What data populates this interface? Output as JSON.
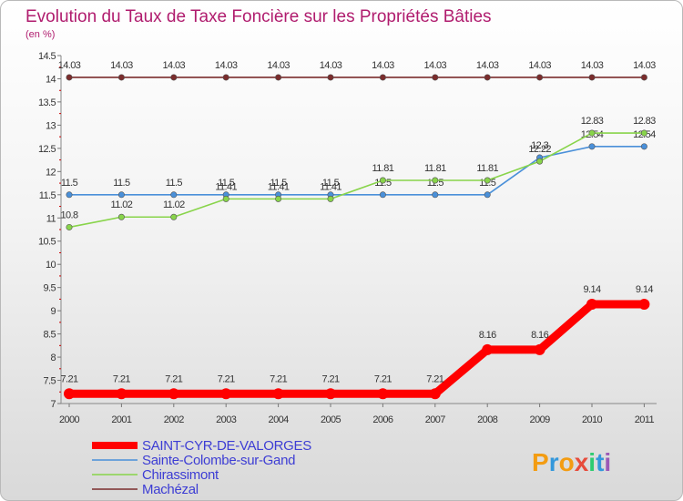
{
  "chart_data": {
    "type": "line",
    "title": "Evolution du Taux de Taxe Foncière sur les Propriétés Bâties",
    "ylabel": "(en %)",
    "xlabel": "",
    "ylim": [
      7,
      14.5
    ],
    "yticks": [
      "7",
      "7.5",
      "8",
      "8.5",
      "9",
      "9.5",
      "10",
      "10.5",
      "11",
      "11.5",
      "12",
      "12.5",
      "13",
      "13.5",
      "14",
      "14.5"
    ],
    "categories": [
      "2000",
      "2001",
      "2002",
      "2003",
      "2004",
      "2005",
      "2006",
      "2007",
      "2008",
      "2009",
      "2010",
      "2011"
    ],
    "series": [
      {
        "name": "SAINT-CYR-DE-VALORGES",
        "color": "#ff0000",
        "values": [
          7.21,
          7.21,
          7.21,
          7.21,
          7.21,
          7.21,
          7.21,
          7.21,
          8.16,
          8.16,
          9.14,
          9.14
        ],
        "labels": [
          "7.21",
          "7.21",
          "7.21",
          "7.21",
          "7.21",
          "7.21",
          "7.21",
          "7.21",
          "8.16",
          "8.16",
          "9.14",
          "9.14"
        ]
      },
      {
        "name": "Sainte-Colombe-sur-Gand",
        "color": "#4a90d9",
        "values": [
          11.5,
          11.5,
          11.5,
          11.5,
          11.5,
          11.5,
          11.5,
          11.5,
          11.5,
          12.3,
          12.54,
          12.54
        ],
        "labels": [
          "11.5",
          "11.5",
          "11.5",
          "11.5",
          "11.5",
          "11.5",
          "11.5",
          "11.5",
          "11.5",
          "12.3",
          "12.54",
          "12.54"
        ]
      },
      {
        "name": "Chirassimont",
        "color": "#88d44a",
        "values": [
          10.8,
          11.02,
          11.02,
          11.41,
          11.41,
          11.41,
          11.81,
          11.81,
          11.81,
          12.22,
          12.83,
          12.83
        ],
        "labels": [
          "10.8",
          "11.02",
          "11.02",
          "11.41",
          "11.41",
          "11.41",
          "11.81",
          "11.81",
          "11.81",
          "12.22",
          "12.83",
          "12.83"
        ]
      },
      {
        "name": "Machézal",
        "color": "#7a2c2c",
        "values": [
          14.03,
          14.03,
          14.03,
          14.03,
          14.03,
          14.03,
          14.03,
          14.03,
          14.03,
          14.03,
          14.03,
          14.03
        ],
        "labels": [
          "14.03",
          "14.03",
          "14.03",
          "14.03",
          "14.03",
          "14.03",
          "14.03",
          "14.03",
          "14.03",
          "14.03",
          "14.03",
          "14.03"
        ]
      }
    ],
    "legend": {
      "placement": "bottom-left",
      "entries": [
        "SAINT-CYR-DE-VALORGES",
        "Sainte-Colombe-sur-Gand",
        "Chirassimont",
        "Machézal"
      ]
    }
  },
  "branding": {
    "logo_text": "Proxiti",
    "logo_colors": [
      "#f39c12",
      "#3498db",
      "#e74c3c",
      "#2ecc71",
      "#9b59b6"
    ]
  }
}
